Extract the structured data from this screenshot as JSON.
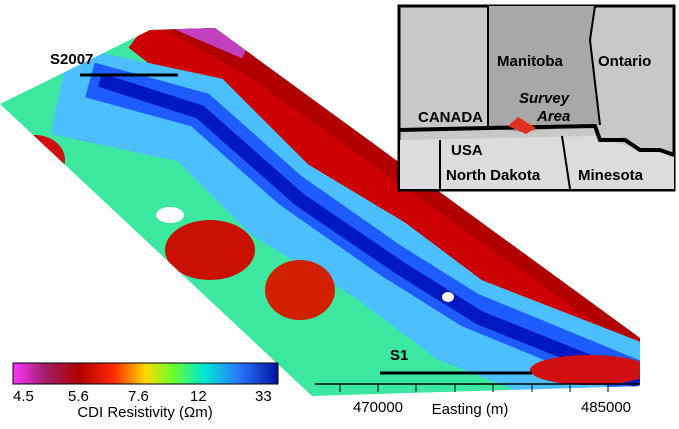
{
  "profiles": {
    "north": "S2007",
    "south": "S1"
  },
  "inset": {
    "provinces": [
      "Manitoba",
      "Ontario"
    ],
    "country_north": "CANADA",
    "country_south": "USA",
    "states": [
      "North Dakota",
      "Minesota"
    ],
    "survey_area": [
      "Survey",
      "Area"
    ]
  },
  "colorbar": {
    "ticks": [
      "4.5",
      "5.6",
      "7.6",
      "12",
      "33"
    ],
    "label": "CDI Resistivity (Ωm)"
  },
  "easting": {
    "ticks": [
      "470000",
      "485000"
    ],
    "label": "Easting (m)"
  }
}
